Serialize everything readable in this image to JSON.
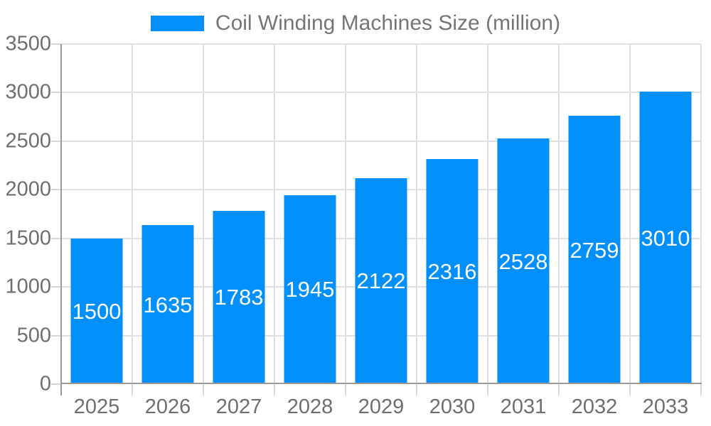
{
  "legend": {
    "label": "Coil Winding Machines Size (million)"
  },
  "colors": {
    "bar": "#008FFB",
    "grid": "#e0e0e0",
    "tick": "#d6d6d6",
    "axis": "#9a9a9a",
    "tick_label": "#6e6e6e",
    "legend_text": "#757575",
    "value_label": "#ffffff"
  },
  "chart_data": {
    "type": "bar",
    "categories": [
      "2025",
      "2026",
      "2027",
      "2028",
      "2029",
      "2030",
      "2031",
      "2032",
      "2033"
    ],
    "series": [
      {
        "name": "Coil Winding Machines Size (million)",
        "values": [
          1500,
          1635,
          1783,
          1945,
          2122,
          2316,
          2528,
          2759,
          3010
        ]
      }
    ],
    "xlabel": "",
    "ylabel": "",
    "ylim": [
      0,
      3500
    ],
    "y_ticks": [
      0,
      500,
      1000,
      1500,
      2000,
      2500,
      3000,
      3500
    ],
    "grid": true,
    "legend_position": "top",
    "data_labels": "inside-center"
  }
}
